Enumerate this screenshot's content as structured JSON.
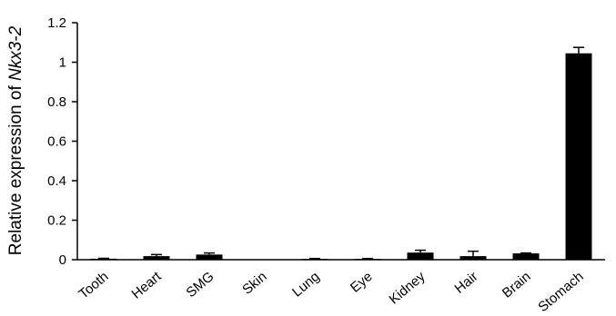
{
  "chart_data": {
    "type": "bar",
    "ylabel_prefix": "Relative expression of ",
    "ylabel_gene": "Nkx3-2",
    "xlabel": "",
    "ylim": [
      0,
      1.2
    ],
    "yticks": [
      0,
      0.2,
      0.4,
      0.6,
      0.8,
      1,
      1.2
    ],
    "ytick_labels": [
      "0",
      "0.2",
      "0.4",
      "0.6",
      "0.8",
      "1",
      "1.2"
    ],
    "categories": [
      "Tooth",
      "Heart",
      "SMG",
      "Skin",
      "Lung",
      "Eye",
      "Kidney",
      "Hair",
      "Brain",
      "Stomach"
    ],
    "values": [
      0.005,
      0.018,
      0.026,
      0.001,
      0.004,
      0.004,
      0.036,
      0.018,
      0.032,
      1.045
    ],
    "errors": [
      0.002,
      0.008,
      0.008,
      0.0005,
      0.002,
      0.002,
      0.012,
      0.025,
      0.002,
      0.03
    ],
    "bar_color": "#000000",
    "grid": false
  }
}
